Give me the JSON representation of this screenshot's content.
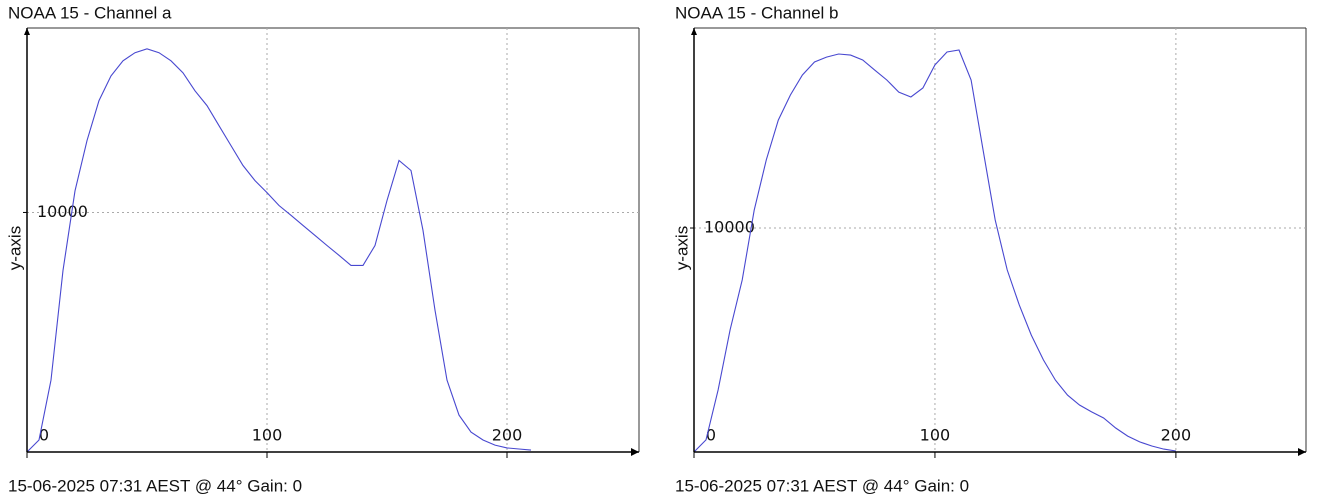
{
  "chart_data": [
    {
      "type": "line",
      "title": "NOAA 15 - Channel a",
      "y_label": "y-axis",
      "caption": "15-06-2025 07:31 AEST @ 44° Gain: 0",
      "x": [
        0,
        5,
        10,
        15,
        20,
        25,
        30,
        35,
        40,
        45,
        50,
        55,
        60,
        65,
        70,
        75,
        80,
        85,
        90,
        95,
        100,
        105,
        110,
        115,
        120,
        125,
        130,
        135,
        140,
        145,
        150,
        155,
        160,
        165,
        170,
        175,
        180,
        185,
        190,
        195,
        200,
        205,
        210
      ],
      "values": [
        0,
        500,
        3000,
        7580,
        10900,
        13000,
        14670,
        15700,
        16330,
        16670,
        16830,
        16670,
        16330,
        15830,
        15080,
        14460,
        13620,
        12790,
        11960,
        11330,
        10830,
        10290,
        9880,
        9460,
        9040,
        8620,
        8210,
        7790,
        7790,
        8620,
        10500,
        12170,
        11750,
        9250,
        5920,
        3000,
        1540,
        830,
        500,
        290,
        170,
        125,
        80
      ],
      "color": "#4848d0",
      "xlim": [
        0,
        255
      ],
      "ylim": [
        0,
        17700
      ],
      "xticks": [
        0,
        100,
        200
      ],
      "yticks": [
        10000
      ],
      "grid": true
    },
    {
      "type": "line",
      "title": "NOAA 15 - Channel b",
      "y_label": "y-axis",
      "caption": "15-06-2025 07:31 AEST @ 44° Gain: 0",
      "x": [
        0,
        5,
        10,
        15,
        20,
        25,
        30,
        35,
        40,
        45,
        50,
        55,
        60,
        65,
        70,
        75,
        80,
        85,
        90,
        95,
        100,
        105,
        110,
        115,
        120,
        125,
        130,
        135,
        140,
        145,
        150,
        155,
        160,
        165,
        170,
        175,
        180,
        185,
        190,
        195,
        200
      ],
      "values": [
        0,
        540,
        2770,
        5450,
        7680,
        10800,
        13040,
        14820,
        15940,
        16830,
        17410,
        17630,
        17770,
        17720,
        17500,
        17050,
        16610,
        16070,
        15850,
        16250,
        17280,
        17860,
        17950,
        16610,
        13480,
        10360,
        8130,
        6560,
        5220,
        4110,
        3210,
        2540,
        2100,
        1790,
        1520,
        1070,
        710,
        450,
        270,
        130,
        45
      ],
      "color": "#4848d0",
      "xlim": [
        0,
        254
      ],
      "ylim": [
        0,
        18930
      ],
      "xticks": [
        0,
        100,
        200
      ],
      "yticks": [
        10000
      ],
      "grid": true
    }
  ]
}
